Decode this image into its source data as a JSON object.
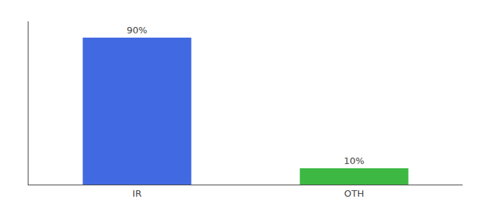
{
  "chart_data": {
    "type": "bar",
    "categories": [
      "IR",
      "OTH"
    ],
    "values": [
      90,
      10
    ],
    "colors": [
      "#4169e1",
      "#3cb843"
    ],
    "value_labels": [
      "90%",
      "10%"
    ],
    "data_labels": true,
    "ylim": [
      0,
      100
    ],
    "yticks": [],
    "tick_labels": "x",
    "grid": false
  }
}
